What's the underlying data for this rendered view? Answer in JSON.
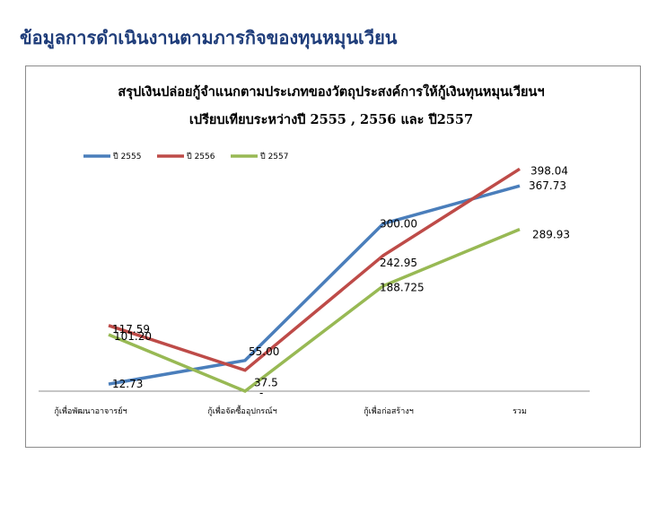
{
  "page": {
    "heading": "ข้อมูลการดำเนินงานตามภารกิจของทุนหมุนเวียน"
  },
  "chart_data": {
    "type": "line",
    "title_line1": "สรุปเงินปล่อยกู้จำแนกตามประเภทของวัตถุประสงค์การให้กู้เงินทุนหมุนเวียนฯ",
    "title_line2": "เปรียบเทียบระหว่างปี 2555 , 2556 และ ปี2557",
    "categories": [
      "กู้เพื่อพัฒนาอาจารย์ฯ",
      "กู้เพื่อจัดซื้ออุปกรณ์ฯ",
      "กู้เพื่อก่อสร้างฯ",
      "รวม"
    ],
    "series": [
      {
        "name": "ปี 2555",
        "color": "#4a7ebb",
        "values": [
          12.73,
          55.0,
          300.0,
          367.73
        ],
        "labels": [
          "12.73",
          "55.00",
          "300.00",
          "367.73"
        ]
      },
      {
        "name": "ปี 2556",
        "color": "#be4b48",
        "values": [
          117.59,
          37.5,
          242.95,
          398.04
        ],
        "labels": [
          "117.59",
          "37.5",
          "242.95",
          "398.04"
        ]
      },
      {
        "name": "ปี 2557",
        "color": "#98b954",
        "values": [
          101.2,
          0,
          188.725,
          289.93
        ],
        "labels": [
          "101.20",
          "-",
          "188.725",
          "289.93"
        ]
      }
    ],
    "ylim": [
      0,
      450
    ],
    "grid": false,
    "legend_position": "top-left",
    "xlabel": "",
    "ylabel": ""
  }
}
